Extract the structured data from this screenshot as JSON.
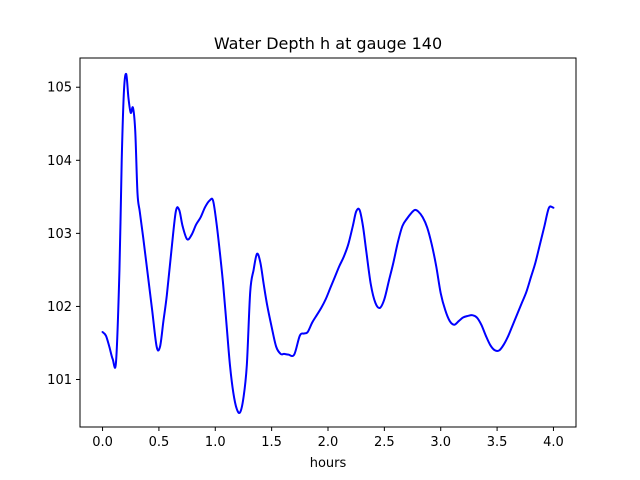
{
  "chart_data": {
    "type": "line",
    "title": "Water Depth h at gauge 140",
    "xlabel": "hours",
    "ylabel": "",
    "xlim": [
      -0.2,
      4.2
    ],
    "ylim": [
      100.35,
      105.4
    ],
    "xticks": [
      0.0,
      0.5,
      1.0,
      1.5,
      2.0,
      2.5,
      3.0,
      3.5,
      4.0
    ],
    "xtick_labels": [
      "0.0",
      "0.5",
      "1.0",
      "1.5",
      "2.0",
      "2.5",
      "3.0",
      "3.5",
      "4.0"
    ],
    "yticks": [
      101,
      102,
      103,
      104,
      105
    ],
    "ytick_labels": [
      "101",
      "102",
      "103",
      "104",
      "105"
    ],
    "grid": false,
    "series": [
      {
        "color": "#0000ff",
        "x": [
          0.0,
          0.03,
          0.06,
          0.09,
          0.12,
          0.15,
          0.17,
          0.19,
          0.21,
          0.23,
          0.25,
          0.27,
          0.29,
          0.31,
          0.33,
          0.36,
          0.4,
          0.44,
          0.48,
          0.51,
          0.54,
          0.57,
          0.61,
          0.65,
          0.68,
          0.71,
          0.75,
          0.79,
          0.83,
          0.87,
          0.91,
          0.95,
          0.98,
          1.01,
          1.04,
          1.07,
          1.1,
          1.13,
          1.16,
          1.19,
          1.22,
          1.25,
          1.28,
          1.31,
          1.34,
          1.37,
          1.4,
          1.43,
          1.46,
          1.5,
          1.54,
          1.58,
          1.61,
          1.65,
          1.7,
          1.75,
          1.79,
          1.82,
          1.86,
          1.9,
          1.94,
          1.98,
          2.02,
          2.06,
          2.1,
          2.14,
          2.18,
          2.22,
          2.25,
          2.28,
          2.31,
          2.34,
          2.38,
          2.42,
          2.46,
          2.5,
          2.54,
          2.58,
          2.62,
          2.66,
          2.7,
          2.74,
          2.77,
          2.8,
          2.84,
          2.88,
          2.92,
          2.96,
          3.0,
          3.04,
          3.08,
          3.12,
          3.16,
          3.2,
          3.24,
          3.28,
          3.32,
          3.36,
          3.4,
          3.44,
          3.48,
          3.52,
          3.56,
          3.6,
          3.64,
          3.68,
          3.72,
          3.76,
          3.8,
          3.84,
          3.88,
          3.92,
          3.96,
          4.0
        ],
        "y": [
          101.65,
          101.6,
          101.45,
          101.28,
          101.25,
          102.5,
          104.0,
          104.95,
          105.18,
          104.85,
          104.65,
          104.72,
          104.4,
          103.55,
          103.3,
          102.95,
          102.45,
          101.95,
          101.45,
          101.45,
          101.8,
          102.15,
          102.75,
          103.3,
          103.32,
          103.1,
          102.92,
          102.98,
          103.12,
          103.22,
          103.36,
          103.45,
          103.45,
          103.15,
          102.75,
          102.3,
          101.75,
          101.2,
          100.82,
          100.6,
          100.55,
          100.75,
          101.2,
          102.2,
          102.5,
          102.72,
          102.6,
          102.3,
          102.02,
          101.72,
          101.45,
          101.35,
          101.35,
          101.34,
          101.34,
          101.6,
          101.63,
          101.65,
          101.78,
          101.88,
          101.98,
          102.1,
          102.25,
          102.4,
          102.55,
          102.68,
          102.85,
          103.1,
          103.3,
          103.32,
          103.1,
          102.75,
          102.3,
          102.05,
          101.98,
          102.1,
          102.35,
          102.6,
          102.88,
          103.1,
          103.2,
          103.28,
          103.32,
          103.3,
          103.22,
          103.08,
          102.85,
          102.55,
          102.18,
          101.95,
          101.8,
          101.75,
          101.8,
          101.85,
          101.87,
          101.88,
          101.85,
          101.75,
          101.6,
          101.47,
          101.4,
          101.4,
          101.48,
          101.6,
          101.75,
          101.9,
          102.05,
          102.2,
          102.4,
          102.6,
          102.85,
          103.1,
          103.35,
          103.35
        ]
      }
    ]
  }
}
